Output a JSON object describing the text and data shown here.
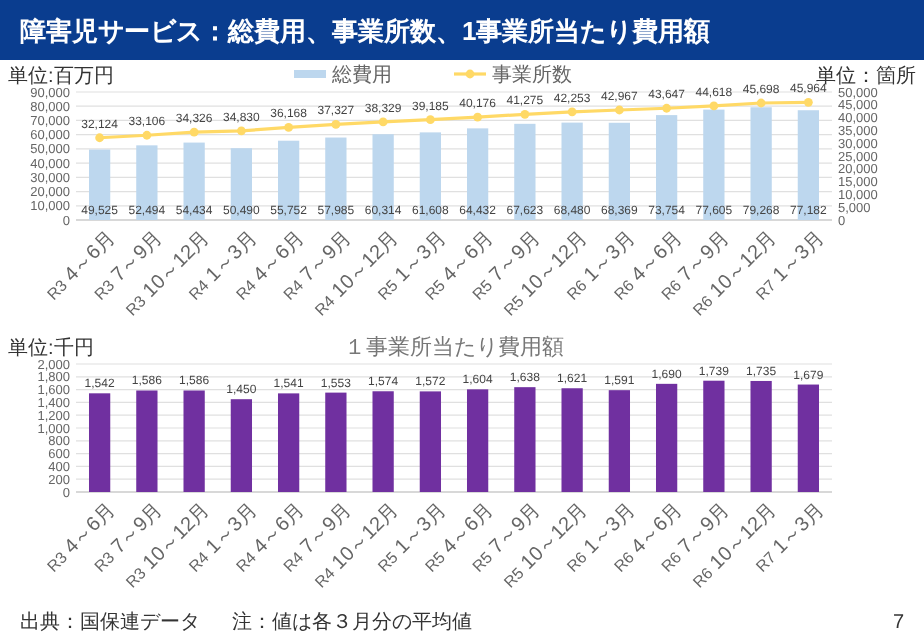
{
  "chart_data": [
    {
      "type": "bar",
      "title": "障害児サービス：総費用、事業所数、1事業所当たり費用額",
      "ylabel": "単位:百万円",
      "y2label": "単位：箇所",
      "categories": [
        "R3\n4～6月",
        "R3\n7～9月",
        "R3\n10～12月",
        "R4\n1～3月",
        "R4\n4～6月",
        "R4\n7～9月",
        "R4\n10～12月",
        "R5\n1～3月",
        "R5\n4～6月",
        "R5\n7～9月",
        "R5\n10～12月",
        "R6\n1～3月",
        "R6\n4～6月",
        "R6\n7～9月",
        "R6\n10～12月",
        "R7\n1～3月"
      ],
      "series": [
        {
          "name": "総費用",
          "color": "#bdd7ee",
          "values": [
            49525,
            52494,
            54434,
            50490,
            55752,
            57985,
            60314,
            61608,
            64432,
            67623,
            68480,
            68369,
            73754,
            77605,
            79268,
            77182
          ],
          "value_labels": [
            "49,525",
            "52,494",
            "54,434",
            "50,490",
            "55,752",
            "57,985",
            "60,314",
            "61,608",
            "64,432",
            "67,623",
            "68,480",
            "68,369",
            "73,754",
            "77,605",
            "79,268",
            "77,182"
          ]
        },
        {
          "name": "事業所数",
          "type": "line",
          "axis": "y2",
          "color": "#ffd966",
          "values": [
            32124,
            33106,
            34326,
            34830,
            36168,
            37327,
            38329,
            39185,
            40176,
            41275,
            42253,
            42967,
            43647,
            44618,
            45698,
            45964
          ],
          "value_labels": [
            "32,124",
            "33,106",
            "34,326",
            "34,830",
            "36,168",
            "37,327",
            "38,329",
            "39,185",
            "40,176",
            "41,275",
            "42,253",
            "42,967",
            "43,647",
            "44,618",
            "45,698",
            "45,964"
          ]
        }
      ],
      "ylim": [
        0,
        90000
      ],
      "yticks": [
        0,
        {
          "value": 10000,
          "label": "10,000"
        },
        {
          "value": 20000,
          "label": "20,000"
        },
        {
          "value": 30000,
          "label": "30,000"
        },
        {
          "value": 40000,
          "label": "40,000"
        },
        {
          "value": 50000,
          "label": "50,000"
        },
        {
          "value": 60000,
          "label": "60,000"
        },
        {
          "value": 70000,
          "label": "70,000"
        },
        {
          "value": 80000,
          "label": "80,000"
        },
        {
          "value": 90000,
          "label": "90,000"
        }
      ],
      "y2lim": [
        0,
        50000
      ],
      "y2ticks": [
        0,
        {
          "value": 5000,
          "label": "5,000"
        },
        {
          "value": 10000,
          "label": "10,000"
        },
        {
          "value": 15000,
          "label": "15,000"
        },
        {
          "value": 20000,
          "label": "20,000"
        },
        {
          "value": 25000,
          "label": "25,000"
        },
        {
          "value": 30000,
          "label": "30,000"
        },
        {
          "value": 35000,
          "label": "35,000"
        },
        {
          "value": 40000,
          "label": "40,000"
        },
        {
          "value": 45000,
          "label": "45,000"
        },
        {
          "value": 50000,
          "label": "50,000"
        }
      ],
      "grid": "y",
      "legend": "top",
      "marker": "circle"
    },
    {
      "type": "bar",
      "title": "１事業所当たり費用額",
      "ylabel": "単位:千円",
      "categories": [
        "R3\n4～6月",
        "R3\n7～9月",
        "R3\n10～12月",
        "R4\n1～3月",
        "R4\n4～6月",
        "R4\n7～9月",
        "R4\n10～12月",
        "R5\n1～3月",
        "R5\n4～6月",
        "R5\n7～9月",
        "R5\n10～12月",
        "R6\n1～3月",
        "R6\n4～6月",
        "R6\n7～9月",
        "R6\n10～12月",
        "R7\n1～3月"
      ],
      "series": [
        {
          "color": "#7030a0",
          "values": [
            1542,
            1586,
            1586,
            1450,
            1541,
            1553,
            1574,
            1572,
            1604,
            1638,
            1621,
            1591,
            1690,
            1739,
            1735,
            1679
          ],
          "value_labels": [
            "1,542",
            "1,586",
            "1,586",
            "1,450",
            "1,541",
            "1,553",
            "1,574",
            "1,572",
            "1,604",
            "1,638",
            "1,621",
            "1,591",
            "1,690",
            "1,739",
            "1,735",
            "1,679"
          ]
        }
      ],
      "ylim": [
        0,
        2000
      ],
      "yticks": [
        0,
        200,
        400,
        600,
        800,
        {
          "value": 1000,
          "label": "1,000"
        },
        {
          "value": 1200,
          "label": "1,200"
        },
        {
          "value": 1400,
          "label": "1,400"
        },
        {
          "value": 1600,
          "label": "1,600"
        },
        {
          "value": 1800,
          "label": "1,800"
        },
        {
          "value": 2000,
          "label": "2,000"
        }
      ],
      "grid": "y",
      "annotations": [
        "出典：国保連データ",
        "注：値は各３月分の平均値",
        "7"
      ]
    }
  ]
}
